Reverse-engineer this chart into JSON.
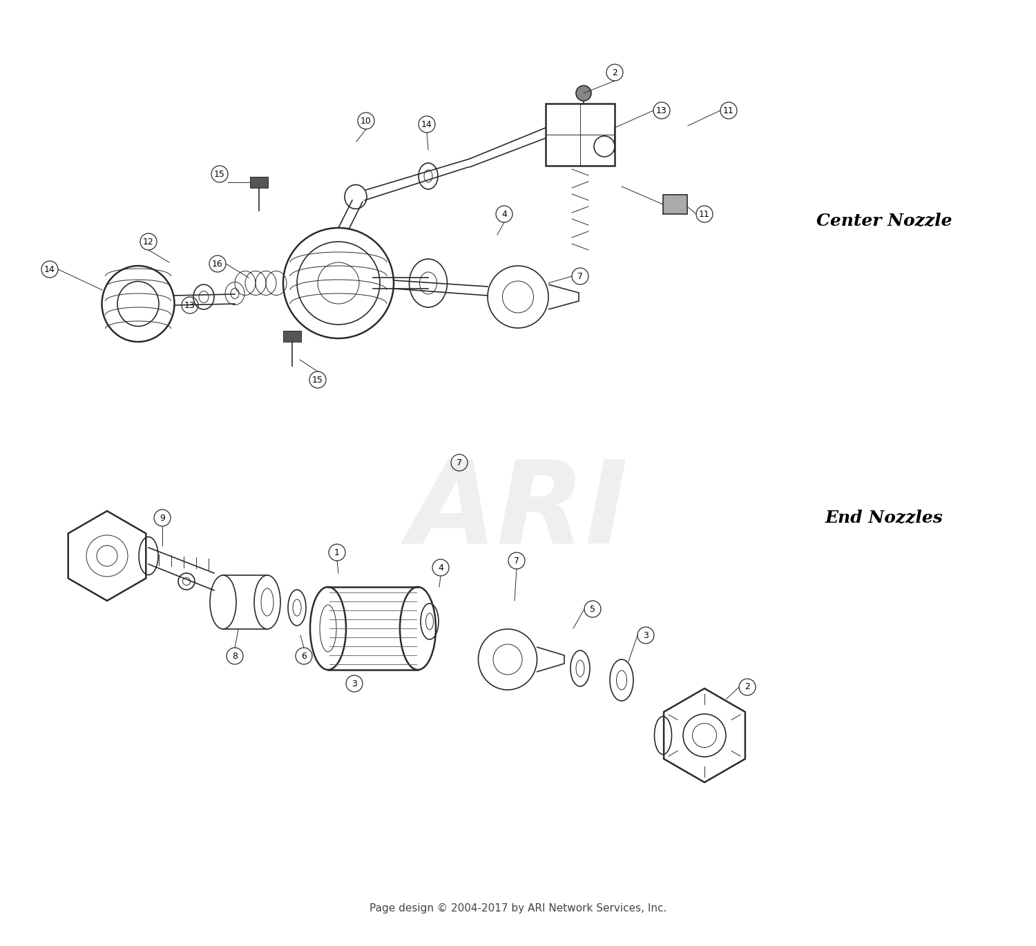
{
  "background_color": "#ffffff",
  "center_nozzle_label": "Center Nozzle",
  "end_nozzles_label": "End Nozzles",
  "watermark": "ARI",
  "footer": "Page design © 2004-2017 by ARI Network Services, Inc.",
  "line_color": "#2a2a2a",
  "light_line": "#555555",
  "watermark_color": "#d8d8d8",
  "footer_color": "#444444",
  "label_fontsize": 10,
  "section_label_fontsize": 18,
  "footer_fontsize": 11,
  "watermark_fontsize": 120
}
